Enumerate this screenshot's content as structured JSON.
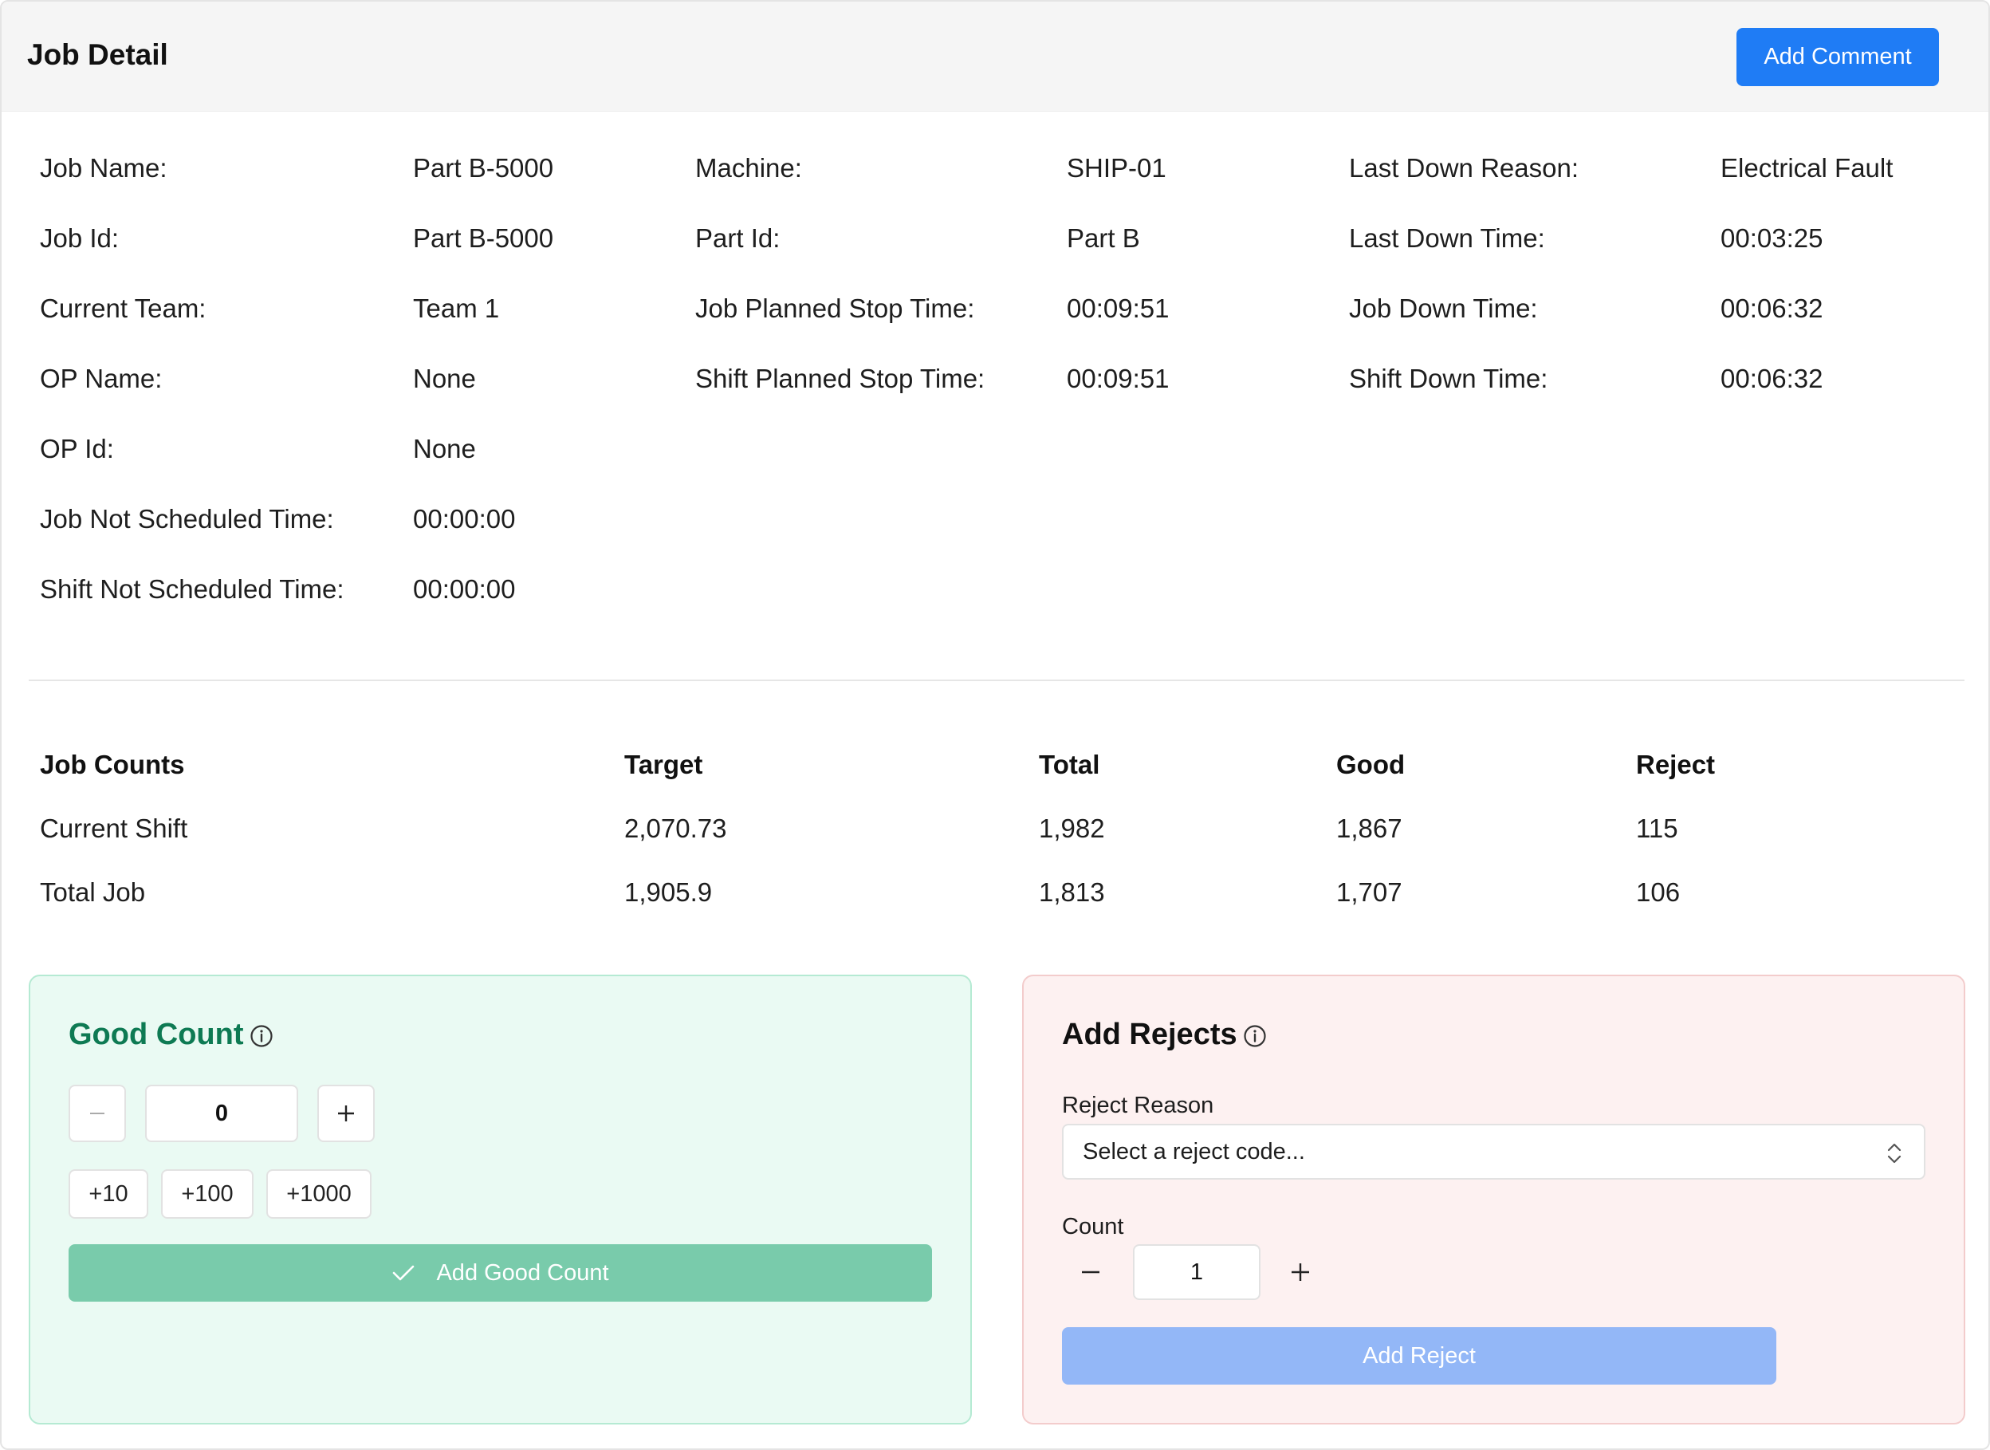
{
  "header": {
    "title": "Job Detail",
    "add_comment_label": "Add Comment"
  },
  "job_info": {
    "col1": [
      {
        "label": "Job Name:",
        "value": "Part B-5000"
      },
      {
        "label": "Job Id:",
        "value": "Part B-5000"
      },
      {
        "label": "Current Team:",
        "value": "Team 1"
      },
      {
        "label": "OP Name:",
        "value": "None"
      },
      {
        "label": "OP Id:",
        "value": "None"
      },
      {
        "label": "Job Not Scheduled Time:",
        "value": "00:00:00"
      },
      {
        "label": "Shift Not Scheduled Time:",
        "value": "00:00:00"
      }
    ],
    "col2": [
      {
        "label": "Machine:",
        "value": "SHIP-01"
      },
      {
        "label": "Part Id:",
        "value": "Part B"
      },
      {
        "label": "Job Planned Stop Time:",
        "value": "00:09:51"
      },
      {
        "label": "Shift Planned Stop Time:",
        "value": "00:09:51"
      }
    ],
    "col3": [
      {
        "label": "Last Down Reason:",
        "value": "Electrical Fault"
      },
      {
        "label": "Last Down Time:",
        "value": "00:03:25"
      },
      {
        "label": "Job Down Time:",
        "value": "00:06:32"
      },
      {
        "label": "Shift Down Time:",
        "value": "00:06:32"
      }
    ]
  },
  "job_counts": {
    "headers": [
      "Job Counts",
      "Target",
      "Total",
      "Good",
      "Reject"
    ],
    "rows": [
      [
        "Current Shift",
        "2,070.73",
        "1,982",
        "1,867",
        "115"
      ],
      [
        "Total Job",
        "1,905.9",
        "1,813",
        "1,707",
        "106"
      ]
    ]
  },
  "good_count": {
    "title": "Good Count",
    "value": "0",
    "quick_adds": [
      "+10",
      "+100",
      "+1000"
    ],
    "submit_label": "Add Good Count",
    "title_color": "#0e7a53"
  },
  "rejects": {
    "title": "Add Rejects",
    "reason_label": "Reject Reason",
    "reason_placeholder": "Select a reject code...",
    "count_label": "Count",
    "count_value": "1",
    "submit_label": "Add Reject"
  },
  "colors": {
    "accent": "#1f7cf5",
    "good_button": "#79cbab",
    "reject_button": "#93b7f7"
  }
}
